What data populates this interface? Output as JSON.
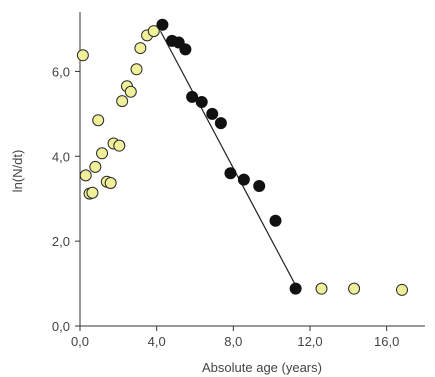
{
  "chart_data": {
    "type": "scatter",
    "title": "",
    "xlabel": "Absolute age (years)",
    "ylabel": "ln(N/dt)",
    "xlim": [
      0,
      18
    ],
    "ylim": [
      0,
      7.4
    ],
    "grid": false,
    "x_ticks": [
      {
        "value": 0,
        "label": "0,0"
      },
      {
        "value": 4,
        "label": "4,0"
      },
      {
        "value": 8,
        "label": "8,0"
      },
      {
        "value": 12,
        "label": "12,0"
      },
      {
        "value": 16,
        "label": "16,0"
      }
    ],
    "y_ticks": [
      {
        "value": 0,
        "label": "0,0"
      },
      {
        "value": 2,
        "label": "2,0"
      },
      {
        "value": 4,
        "label": "4,0"
      },
      {
        "value": 6,
        "label": "6,0"
      }
    ],
    "series": [
      {
        "color": "#f0f09a",
        "stroke": "#2a2a2a",
        "points": [
          {
            "x": 0.15,
            "y": 6.38
          },
          {
            "x": 0.3,
            "y": 3.55
          },
          {
            "x": 0.5,
            "y": 3.12
          },
          {
            "x": 0.65,
            "y": 3.14
          },
          {
            "x": 0.8,
            "y": 3.75
          },
          {
            "x": 0.95,
            "y": 4.85
          },
          {
            "x": 1.15,
            "y": 4.07
          },
          {
            "x": 1.4,
            "y": 3.4
          },
          {
            "x": 1.6,
            "y": 3.37
          },
          {
            "x": 1.75,
            "y": 4.3
          },
          {
            "x": 2.05,
            "y": 4.25
          },
          {
            "x": 2.2,
            "y": 5.3
          },
          {
            "x": 2.45,
            "y": 5.65
          },
          {
            "x": 2.65,
            "y": 5.52
          },
          {
            "x": 2.95,
            "y": 6.05
          },
          {
            "x": 3.15,
            "y": 6.55
          },
          {
            "x": 3.5,
            "y": 6.85
          },
          {
            "x": 3.85,
            "y": 6.95
          },
          {
            "x": 12.6,
            "y": 0.88
          },
          {
            "x": 14.3,
            "y": 0.88
          },
          {
            "x": 16.8,
            "y": 0.85
          }
        ]
      },
      {
        "color": "#111111",
        "stroke": "#111111",
        "points": [
          {
            "x": 4.3,
            "y": 7.1
          },
          {
            "x": 4.8,
            "y": 6.72
          },
          {
            "x": 5.15,
            "y": 6.68
          },
          {
            "x": 5.5,
            "y": 6.52
          },
          {
            "x": 5.85,
            "y": 5.4
          },
          {
            "x": 6.35,
            "y": 5.28
          },
          {
            "x": 6.9,
            "y": 5.0
          },
          {
            "x": 7.35,
            "y": 4.78
          },
          {
            "x": 7.85,
            "y": 3.6
          },
          {
            "x": 8.55,
            "y": 3.45
          },
          {
            "x": 9.35,
            "y": 3.3
          },
          {
            "x": 10.2,
            "y": 2.48
          },
          {
            "x": 11.25,
            "y": 0.88
          }
        ]
      }
    ],
    "trendline": {
      "x": [
        4.2,
        11.2
      ],
      "y": [
        6.95,
        1.0
      ],
      "color": "#222222"
    }
  }
}
